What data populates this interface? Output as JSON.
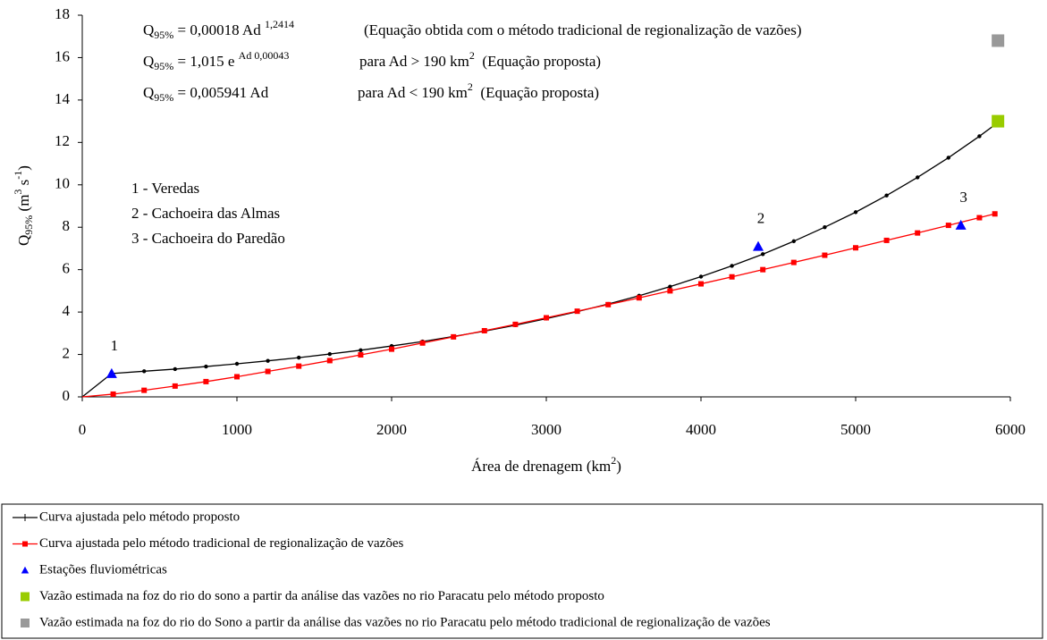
{
  "chart_data": {
    "type": "line",
    "equations": [
      {
        "formula": [
          {
            "text": "Q"
          },
          {
            "sub": "95%"
          },
          {
            "text": " = 0,00018 Ad "
          },
          {
            "sup": "1,2414"
          }
        ],
        "description": [
          {
            "text": "(Equação obtida com o método tradicional de regionalização de vazões)"
          }
        ]
      },
      {
        "formula": [
          {
            "text": "Q"
          },
          {
            "sub": "95%"
          },
          {
            "text": " = 1,015 e "
          },
          {
            "sup": "Ad 0,00043"
          }
        ],
        "description": [
          {
            "text": "para Ad > 190 km"
          },
          {
            "sup": "2"
          },
          {
            "text": "  (Equação proposta)"
          }
        ]
      },
      {
        "formula": [
          {
            "text": "Q"
          },
          {
            "sub": "95%"
          },
          {
            "text": " = 0,005941 Ad"
          }
        ],
        "description": [
          {
            "text": "para Ad < 190 km"
          },
          {
            "sup": "2"
          },
          {
            "text": "  (Equação proposta)"
          }
        ]
      }
    ],
    "station_names": [
      "1 - Veredas",
      "2 - Cachoeira das Almas",
      "3 - Cachoeira do Paredão"
    ],
    "xlabel": [
      {
        "text": "Área de drenagem (km"
      },
      {
        "sup": "2"
      },
      {
        "text": ")"
      }
    ],
    "ylabel": [
      {
        "text": "Q"
      },
      {
        "sub": "95%"
      },
      {
        "text": " (m"
      },
      {
        "sup": "3"
      },
      {
        "text": " s"
      },
      {
        "sup": "-1"
      },
      {
        "text": ")"
      }
    ],
    "xlim": [
      0,
      6000
    ],
    "xticks": [
      0,
      1000,
      2000,
      3000,
      4000,
      5000,
      6000
    ],
    "ylim": [
      0,
      18
    ],
    "yticks": [
      0,
      2,
      4,
      6,
      8,
      10,
      12,
      14,
      16,
      18
    ],
    "grid": false,
    "legend": "bottom",
    "series": [
      {
        "name": "Curva ajustada pelo método proposto",
        "color": "#000000",
        "marker": "dot",
        "line": true,
        "x": [
          0,
          190,
          400,
          600,
          800,
          1000,
          1200,
          1400,
          1600,
          1800,
          2000,
          2200,
          2400,
          2600,
          2800,
          3000,
          3200,
          3400,
          3600,
          3800,
          4000,
          4200,
          4400,
          4600,
          4800,
          5000,
          5200,
          5400,
          5600,
          5800,
          5900
        ],
        "values": [
          0,
          1.1,
          1.21,
          1.31,
          1.43,
          1.56,
          1.7,
          1.85,
          2.02,
          2.2,
          2.4,
          2.61,
          2.85,
          3.1,
          3.38,
          3.69,
          4.02,
          4.38,
          4.77,
          5.2,
          5.67,
          6.18,
          6.73,
          7.34,
          8.0,
          8.71,
          9.5,
          10.35,
          11.28,
          12.29,
          12.83
        ]
      },
      {
        "name": "Curva ajustada pelo método tradicional de regionalização de vazões",
        "color": "#ff0000",
        "marker": "square",
        "line": true,
        "x": [
          0,
          200,
          400,
          600,
          800,
          1000,
          1200,
          1400,
          1600,
          1800,
          2000,
          2200,
          2400,
          2600,
          2800,
          3000,
          3200,
          3400,
          3600,
          3800,
          4000,
          4200,
          4400,
          4600,
          4800,
          5000,
          5200,
          5400,
          5600,
          5800,
          5900
        ],
        "values": [
          0,
          0.13,
          0.31,
          0.51,
          0.72,
          0.95,
          1.2,
          1.45,
          1.71,
          1.98,
          2.25,
          2.54,
          2.83,
          3.12,
          3.42,
          3.73,
          4.04,
          4.35,
          4.67,
          5.0,
          5.33,
          5.66,
          6.0,
          6.34,
          6.68,
          7.03,
          7.38,
          7.73,
          8.09,
          8.45,
          8.63
        ]
      },
      {
        "name": "Estações fluviométricas",
        "color": "#0000ff",
        "marker": "triangle",
        "line": false,
        "x": [
          190,
          4370,
          5680
        ],
        "values": [
          1.1,
          7.1,
          8.1
        ],
        "point_labels": [
          "1",
          "2",
          "3"
        ]
      },
      {
        "name": "Vazão estimada na foz do rio do sono a partir da análise das vazões no rio Paracatu pelo método proposto",
        "color": "#99cc00",
        "marker": "big-square",
        "line": false,
        "x": [
          5920
        ],
        "values": [
          13
        ]
      },
      {
        "name": "Vazão estimada na foz do rio do Sono a partir da análise das vazões no rio Paracatu pelo método tradicional de regionalização de vazões",
        "color": "#999999",
        "marker": "big-square",
        "line": false,
        "x": [
          5920
        ],
        "values": [
          16.8
        ]
      }
    ]
  }
}
